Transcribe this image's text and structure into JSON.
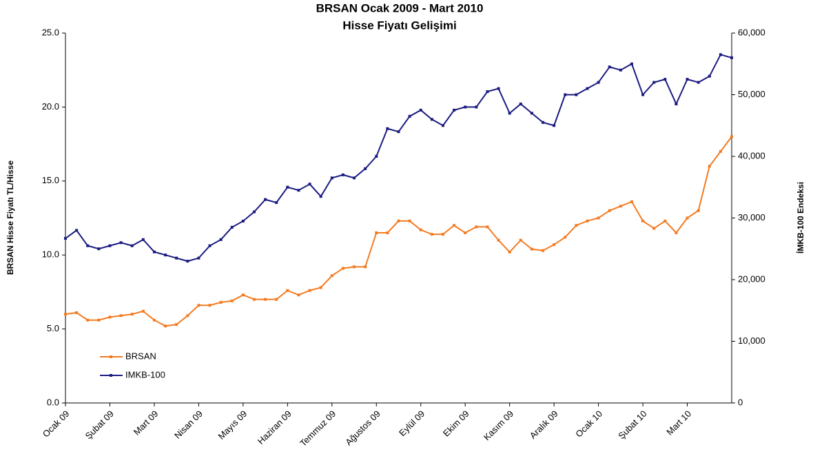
{
  "chart_data": {
    "type": "line",
    "title": "BRSAN Ocak 2009 - Mart 2010",
    "subtitle": "Hisse Fiyatı Gelişimi",
    "ylabel": "BRSAN Hisse Fiyatı TL/Hisse",
    "y2label": "İMKB-100 Endeksi",
    "categories": [
      "Ocak 09",
      null,
      null,
      null,
      "Şubat 09",
      null,
      null,
      null,
      "Mart 09",
      null,
      null,
      null,
      "Nisan 09",
      null,
      null,
      null,
      "Mayıs 09",
      null,
      null,
      null,
      "Haziran  09",
      null,
      null,
      null,
      "Temmuz 09",
      null,
      null,
      null,
      "Ağustos 09",
      null,
      null,
      null,
      "Eylül 09",
      null,
      null,
      null,
      "Ekim 09",
      null,
      null,
      null,
      "Kasım 09",
      null,
      null,
      null,
      "Aralık 09",
      null,
      null,
      null,
      "Ocak 10",
      null,
      null,
      null,
      "Şubat 10",
      null,
      null,
      null,
      "Mart 10",
      null,
      null,
      null,
      null
    ],
    "series": [
      {
        "name": "BRSAN",
        "color": "#f47a20",
        "axis": "y",
        "values": [
          6.0,
          6.1,
          5.6,
          5.6,
          5.8,
          5.9,
          6.0,
          6.2,
          5.6,
          5.2,
          5.3,
          5.9,
          6.6,
          6.6,
          6.8,
          6.9,
          7.3,
          7.0,
          7.0,
          7.0,
          7.6,
          7.3,
          7.6,
          7.8,
          8.6,
          9.1,
          9.2,
          9.2,
          11.5,
          11.5,
          12.3,
          12.3,
          11.7,
          11.4,
          11.4,
          12.0,
          11.5,
          11.9,
          11.9,
          11.0,
          10.2,
          11.0,
          10.4,
          10.3,
          10.7,
          11.2,
          12.0,
          12.3,
          12.5,
          13.0,
          13.3,
          13.6,
          12.3,
          11.8,
          12.3,
          11.5,
          12.5,
          13.0,
          16.0,
          17.0,
          18.0
        ]
      },
      {
        "name": "IMKB-100",
        "color": "#1a1a80",
        "axis": "y2",
        "values": [
          26700,
          28000,
          25500,
          25000,
          25500,
          26000,
          25500,
          26500,
          24500,
          24000,
          23500,
          23000,
          23500,
          25500,
          26500,
          28500,
          29500,
          31000,
          33000,
          32500,
          35000,
          34500,
          35500,
          33500,
          36500,
          37000,
          36500,
          38000,
          40000,
          44500,
          44000,
          46500,
          47500,
          46000,
          45000,
          47500,
          48000,
          48000,
          50500,
          51000,
          47000,
          48500,
          47000,
          45500,
          45000,
          50000,
          50000,
          51000,
          52000,
          54500,
          54000,
          55000,
          50000,
          52000,
          52500,
          48500,
          52500,
          52000,
          53000,
          56500,
          56000
        ]
      }
    ],
    "ylim": [
      0,
      25
    ],
    "yticks": [
      {
        "value": 0,
        "label": "0.0"
      },
      {
        "value": 5,
        "label": "5.0"
      },
      {
        "value": 10,
        "label": "10.0"
      },
      {
        "value": 15,
        "label": "15.0"
      },
      {
        "value": 20,
        "label": "20.0"
      },
      {
        "value": 25,
        "label": "25.0"
      }
    ],
    "y2lim": [
      0,
      60000
    ],
    "y2ticks": [
      0,
      {
        "value": 10000,
        "label": "10,000"
      },
      {
        "value": 20000,
        "label": "20,000"
      },
      {
        "value": 30000,
        "label": "30,000"
      },
      {
        "value": 40000,
        "label": "40,000"
      },
      {
        "value": 50000,
        "label": "50,000"
      },
      {
        "value": 60000,
        "label": "60,000"
      }
    ],
    "legend": "lower-left"
  }
}
